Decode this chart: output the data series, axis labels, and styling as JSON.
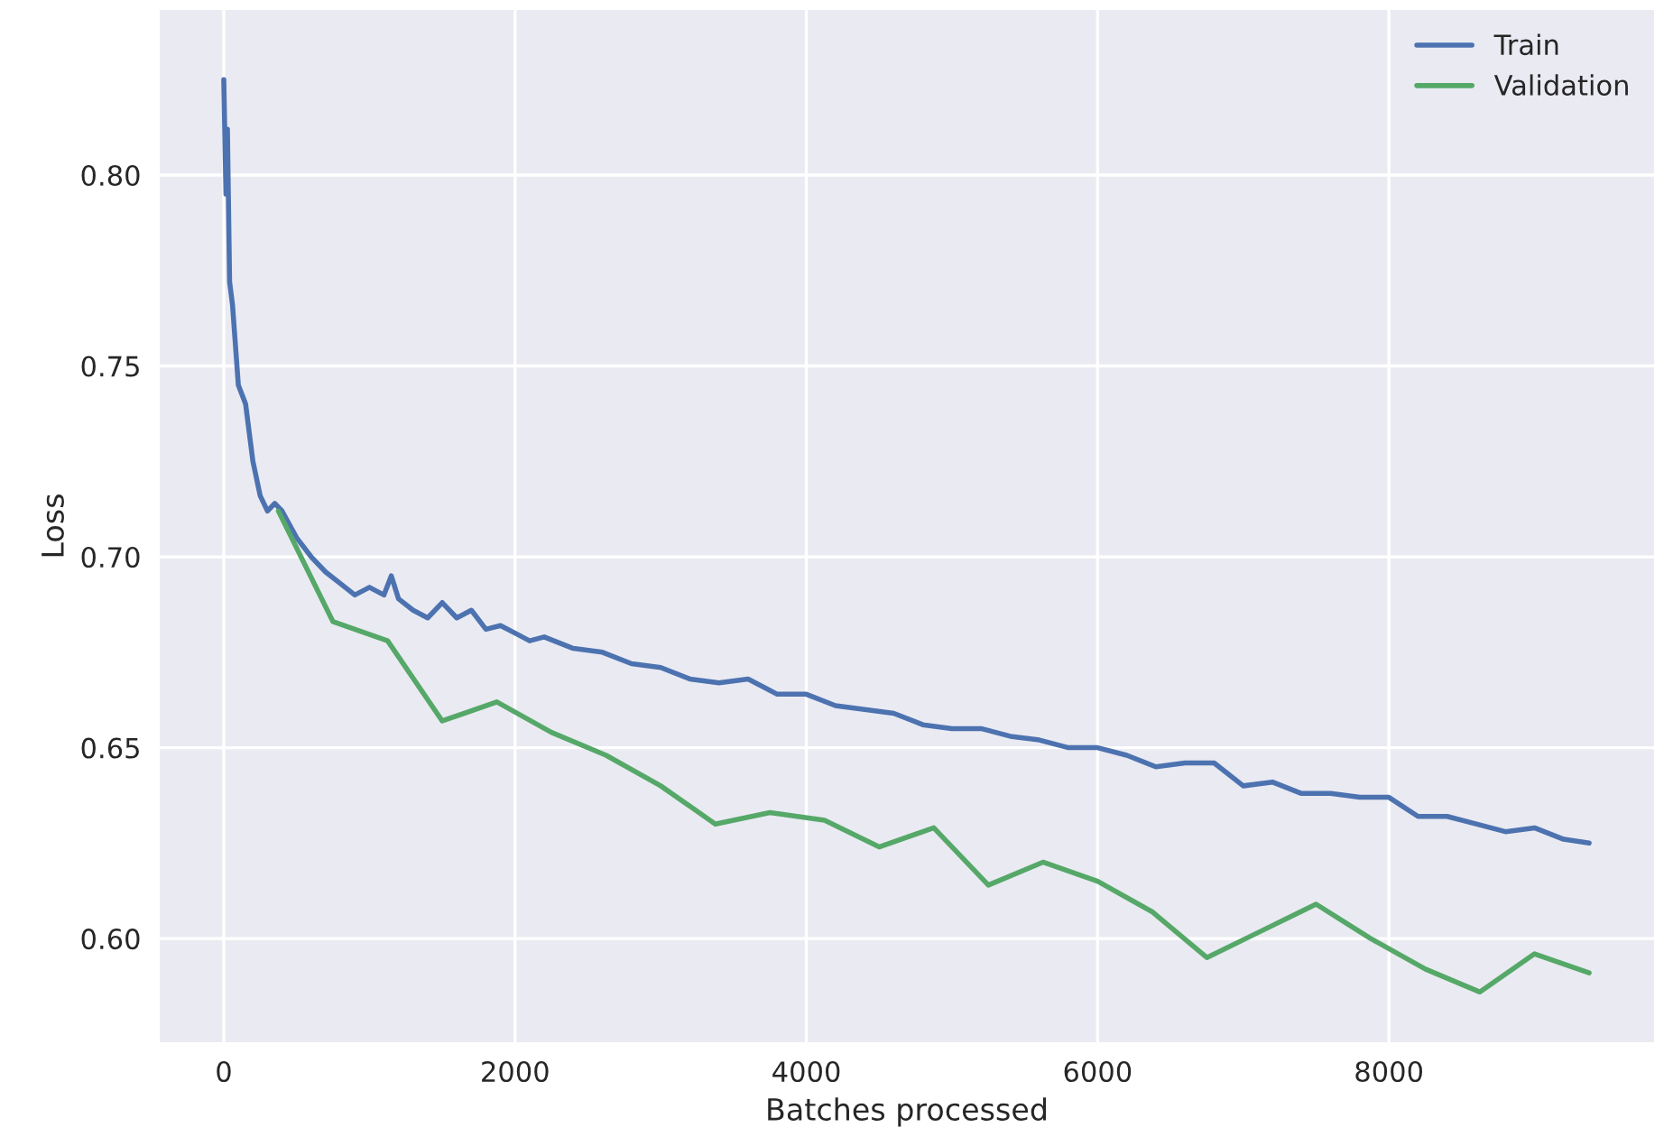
{
  "chart_data": {
    "type": "line",
    "xlabel": "Batches processed",
    "ylabel": "Loss",
    "xlim": [
      -446,
      9827
    ],
    "ylim": [
      0.5726,
      0.8435
    ],
    "xticks": [
      0,
      2000,
      4000,
      6000,
      8000
    ],
    "yticks": [
      {
        "value": 0.6,
        "label": "0.60"
      },
      {
        "value": 0.65,
        "label": "0.65"
      },
      {
        "value": 0.7,
        "label": "0.70"
      },
      {
        "value": 0.75,
        "label": "0.75"
      },
      {
        "value": 0.8,
        "label": "0.80"
      }
    ],
    "grid": true,
    "legend": "top right",
    "series": [
      {
        "name": "Train",
        "color": "#4c72b0",
        "x": [
          0,
          15,
          25,
          40,
          60,
          100,
          150,
          200,
          250,
          300,
          350,
          400,
          500,
          600,
          700,
          800,
          900,
          1000,
          1100,
          1150,
          1200,
          1300,
          1400,
          1500,
          1600,
          1700,
          1800,
          1900,
          2000,
          2100,
          2200,
          2400,
          2600,
          2800,
          3000,
          3200,
          3400,
          3600,
          3800,
          4000,
          4200,
          4400,
          4600,
          4800,
          5000,
          5200,
          5400,
          5600,
          5800,
          6000,
          6200,
          6400,
          6600,
          6800,
          7000,
          7200,
          7400,
          7600,
          7800,
          8000,
          8200,
          8400,
          8600,
          8800,
          9000,
          9200,
          9375
        ],
        "values": [
          0.825,
          0.795,
          0.812,
          0.772,
          0.766,
          0.745,
          0.74,
          0.725,
          0.716,
          0.712,
          0.714,
          0.712,
          0.705,
          0.7,
          0.696,
          0.693,
          0.69,
          0.692,
          0.69,
          0.695,
          0.689,
          0.686,
          0.684,
          0.688,
          0.684,
          0.686,
          0.681,
          0.682,
          0.68,
          0.678,
          0.679,
          0.676,
          0.675,
          0.672,
          0.671,
          0.668,
          0.667,
          0.668,
          0.664,
          0.664,
          0.661,
          0.66,
          0.659,
          0.656,
          0.655,
          0.655,
          0.653,
          0.652,
          0.65,
          0.65,
          0.648,
          0.645,
          0.646,
          0.646,
          0.64,
          0.641,
          0.638,
          0.638,
          0.637,
          0.637,
          0.632,
          0.632,
          0.63,
          0.628,
          0.629,
          0.626,
          0.625
        ]
      },
      {
        "name": "Validation",
        "color": "#55a868",
        "x": [
          375,
          750,
          1125,
          1500,
          1875,
          2250,
          2625,
          3000,
          3375,
          3750,
          4125,
          4500,
          4875,
          5250,
          5625,
          6000,
          6375,
          6750,
          7125,
          7500,
          7875,
          8250,
          8625,
          9000,
          9375
        ],
        "values": [
          0.712,
          0.683,
          0.678,
          0.657,
          0.662,
          0.654,
          0.648,
          0.64,
          0.63,
          0.633,
          0.631,
          0.624,
          0.629,
          0.614,
          0.62,
          0.615,
          0.607,
          0.595,
          0.602,
          0.609,
          0.6,
          0.592,
          0.586,
          0.596,
          0.591
        ]
      }
    ]
  }
}
